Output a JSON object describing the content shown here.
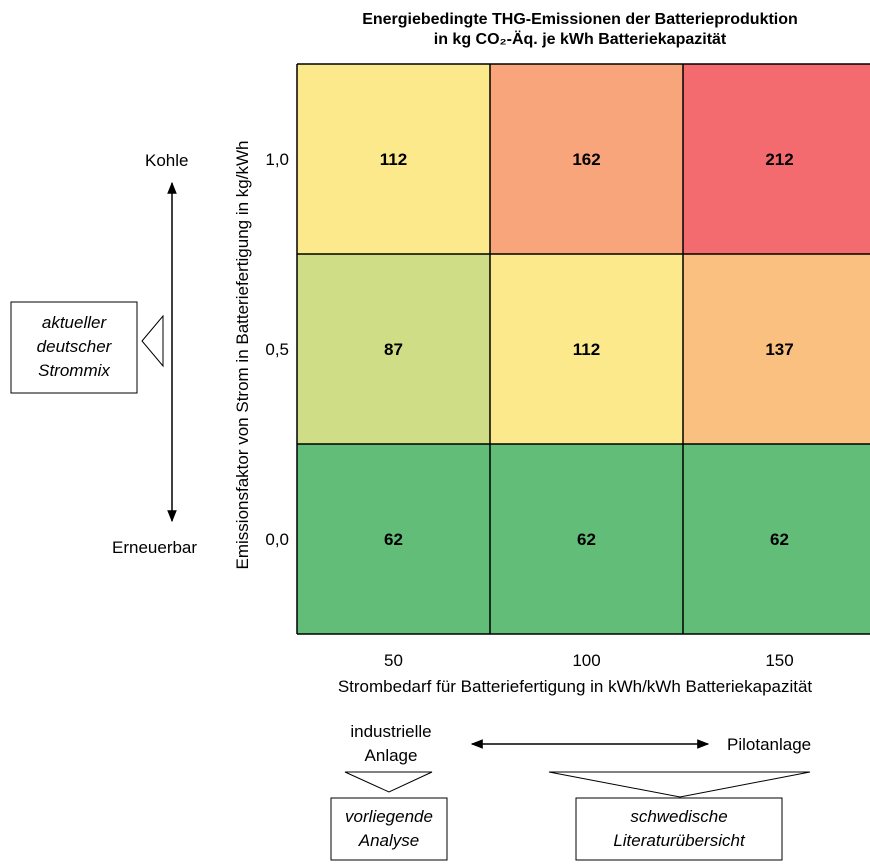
{
  "chart_data": {
    "type": "heatmap",
    "title_line1": "Energiebedingte THG-Emissionen der Batterieproduktion",
    "title_line2": "in kg CO₂-Äq. je kWh Batteriekapazität",
    "xlabel": "Strombedarf für Batteriefertigung in kWh/kWh Batteriekapazität",
    "ylabel": "Emissionsfaktor von Strom in Batteriefertigung in kg/kWh",
    "x": [
      "50",
      "100",
      "150"
    ],
    "y": [
      "1,0",
      "0,5",
      "0,0"
    ],
    "values": [
      [
        112,
        162,
        212
      ],
      [
        87,
        112,
        137
      ],
      [
        62,
        62,
        62
      ]
    ],
    "colors": [
      [
        "#fbe98c",
        "#f8a57c",
        "#f46b6f"
      ],
      [
        "#cfdd87",
        "#fbe98c",
        "#f9c07f"
      ],
      [
        "#62bd78",
        "#62bd78",
        "#62bd78"
      ]
    ]
  },
  "annotations": {
    "kohle": "Kohle",
    "erneuerbar": "Erneuerbar",
    "strommix_box": [
      "aktueller",
      "deutscher",
      "Strommix"
    ],
    "industrielle_anlage": [
      "industrielle",
      "Anlage"
    ],
    "pilotanlage": "Pilotanlage",
    "vorliegende_analyse": [
      "vorliegende",
      "Analyse"
    ],
    "literaturuebersicht": [
      "schwedische",
      "Literaturübersicht"
    ]
  }
}
